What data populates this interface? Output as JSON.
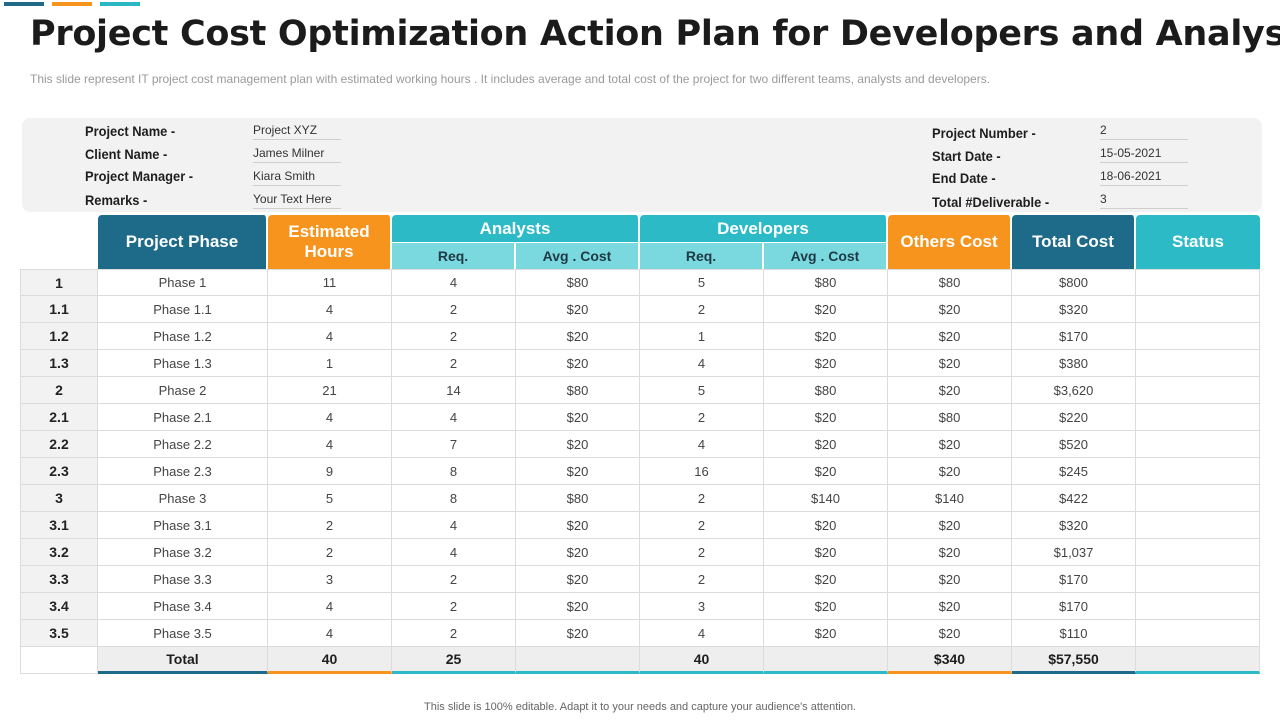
{
  "title": "Project Cost Optimization Action Plan for Developers and Analyst",
  "subtitle": "This slide represent IT project cost management plan with estimated working hours . It includes average and total cost of the project for two different teams, analysts and developers.",
  "info": {
    "project_name_label": "Project Name -",
    "project_name": "Project XYZ",
    "client_name_label": "Client Name -",
    "client_name": "James Milner",
    "project_manager_label": "Project Manager -",
    "project_manager": "Kiara Smith",
    "remarks_label": "Remarks -",
    "remarks": "Your Text Here",
    "project_number_label": "Project Number -",
    "project_number": "2",
    "start_date_label": "Start Date -",
    "start_date": "15-05-2021",
    "end_date_label": "End Date -",
    "end_date": "18-06-2021",
    "total_deliverable_label": "Total #Deliverable -",
    "total_deliverable": "3"
  },
  "table": {
    "headers": {
      "project_phase": "Project Phase",
      "estimated_hours": "Estimated Hours",
      "analysts": "Analysts",
      "developers": "Developers",
      "others_cost": "Others Cost",
      "total_cost": "Total Cost",
      "status": "Status",
      "req": "Req.",
      "avg_cost": "Avg . Cost"
    },
    "rows": [
      {
        "idx": "1",
        "phase": "Phase 1",
        "hours": "11",
        "a_req": "4",
        "a_avg": "$80",
        "d_req": "5",
        "d_avg": "$80",
        "others": "$80",
        "total": "$800",
        "status": ""
      },
      {
        "idx": "1.1",
        "phase": "Phase 1.1",
        "hours": "4",
        "a_req": "2",
        "a_avg": "$20",
        "d_req": "2",
        "d_avg": "$20",
        "others": "$20",
        "total": "$320",
        "status": ""
      },
      {
        "idx": "1.2",
        "phase": "Phase 1.2",
        "hours": "4",
        "a_req": "2",
        "a_avg": "$20",
        "d_req": "1",
        "d_avg": "$20",
        "others": "$20",
        "total": "$170",
        "status": ""
      },
      {
        "idx": "1.3",
        "phase": "Phase 1.3",
        "hours": "1",
        "a_req": "2",
        "a_avg": "$20",
        "d_req": "4",
        "d_avg": "$20",
        "others": "$20",
        "total": "$380",
        "status": ""
      },
      {
        "idx": "2",
        "phase": "Phase 2",
        "hours": "21",
        "a_req": "14",
        "a_avg": "$80",
        "d_req": "5",
        "d_avg": "$80",
        "others": "$20",
        "total": "$3,620",
        "status": ""
      },
      {
        "idx": "2.1",
        "phase": "Phase 2.1",
        "hours": "4",
        "a_req": "4",
        "a_avg": "$20",
        "d_req": "2",
        "d_avg": "$20",
        "others": "$80",
        "total": "$220",
        "status": ""
      },
      {
        "idx": "2.2",
        "phase": "Phase 2.2",
        "hours": "4",
        "a_req": "7",
        "a_avg": "$20",
        "d_req": "4",
        "d_avg": "$20",
        "others": "$20",
        "total": "$520",
        "status": ""
      },
      {
        "idx": "2.3",
        "phase": "Phase 2.3",
        "hours": "9",
        "a_req": "8",
        "a_avg": "$20",
        "d_req": "16",
        "d_avg": "$20",
        "others": "$20",
        "total": "$245",
        "status": ""
      },
      {
        "idx": "3",
        "phase": "Phase 3",
        "hours": "5",
        "a_req": "8",
        "a_avg": "$80",
        "d_req": "2",
        "d_avg": "$140",
        "others": "$140",
        "total": "$422",
        "status": ""
      },
      {
        "idx": "3.1",
        "phase": "Phase 3.1",
        "hours": "2",
        "a_req": "4",
        "a_avg": "$20",
        "d_req": "2",
        "d_avg": "$20",
        "others": "$20",
        "total": "$320",
        "status": ""
      },
      {
        "idx": "3.2",
        "phase": "Phase 3.2",
        "hours": "2",
        "a_req": "4",
        "a_avg": "$20",
        "d_req": "2",
        "d_avg": "$20",
        "others": "$20",
        "total": "$1,037",
        "status": ""
      },
      {
        "idx": "3.3",
        "phase": "Phase 3.3",
        "hours": "3",
        "a_req": "2",
        "a_avg": "$20",
        "d_req": "2",
        "d_avg": "$20",
        "others": "$20",
        "total": "$170",
        "status": ""
      },
      {
        "idx": "3.4",
        "phase": "Phase 3.4",
        "hours": "4",
        "a_req": "2",
        "a_avg": "$20",
        "d_req": "3",
        "d_avg": "$20",
        "others": "$20",
        "total": "$170",
        "status": ""
      },
      {
        "idx": "3.5",
        "phase": "Phase 3.5",
        "hours": "4",
        "a_req": "2",
        "a_avg": "$20",
        "d_req": "4",
        "d_avg": "$20",
        "others": "$20",
        "total": "$110",
        "status": ""
      }
    ],
    "total": {
      "label": "Total",
      "hours": "40",
      "a_req": "25",
      "a_avg": "",
      "d_req": "40",
      "d_avg": "",
      "others": "$340",
      "total": "$57,550",
      "status": ""
    }
  },
  "footer": "This slide is 100% editable. Adapt it to your needs and capture your audience's attention.",
  "colors": {
    "teal_dark": "#1e6b89",
    "orange": "#f7941d",
    "teal": "#2cbac6",
    "teal_light": "#7ad9df"
  }
}
